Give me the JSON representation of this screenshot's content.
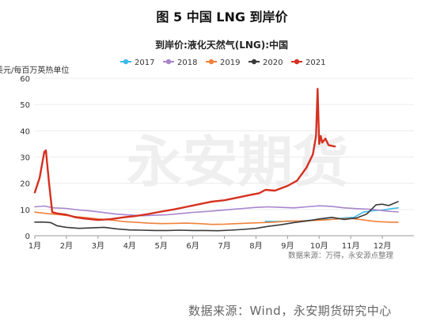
{
  "figure": {
    "title": "图 5 中国 LNG 到岸价",
    "source": "数据来源：Wind，永安期货研究中心"
  },
  "chart_data": {
    "type": "line",
    "title": "到岸价:液化天然气(LNG):中国",
    "ylabel": "美元/每百万英热单位",
    "note": "数据来源：万得，永安源点整理",
    "watermark": "永安期货",
    "xlim": [
      0,
      12
    ],
    "ylim": [
      0,
      60
    ],
    "yticks": [
      0,
      10,
      20,
      30,
      40,
      50,
      60
    ],
    "xticks": [
      {
        "x": 0,
        "label": "1月"
      },
      {
        "x": 1,
        "label": "2月"
      },
      {
        "x": 2,
        "label": "3月"
      },
      {
        "x": 3,
        "label": "4月"
      },
      {
        "x": 4,
        "label": "5月"
      },
      {
        "x": 5,
        "label": "6月"
      },
      {
        "x": 6,
        "label": "7月"
      },
      {
        "x": 7,
        "label": "8月"
      },
      {
        "x": 8,
        "label": "9月"
      },
      {
        "x": 9,
        "label": "10月"
      },
      {
        "x": 10,
        "label": "11月"
      },
      {
        "x": 11,
        "label": "12月"
      }
    ],
    "legend_position": "top",
    "series": [
      {
        "name": "2017",
        "color": "#3bb9e8",
        "x": [
          7.3,
          7.6,
          8.0,
          8.3,
          8.6,
          8.9,
          9.2,
          9.5,
          9.8,
          10.1,
          10.4,
          10.7,
          11.0,
          11.3,
          11.5
        ],
        "y": [
          5.5,
          5.4,
          5.5,
          5.6,
          5.8,
          6.0,
          6.2,
          6.3,
          6.8,
          7.0,
          9.0,
          9.5,
          9.8,
          10.3,
          10.6
        ]
      },
      {
        "name": "2018",
        "color": "#a785cc",
        "x": [
          0,
          0.3,
          0.6,
          1.0,
          1.4,
          1.8,
          2.2,
          2.6,
          3.0,
          3.4,
          3.8,
          4.2,
          4.6,
          5.0,
          5.4,
          5.8,
          6.2,
          6.6,
          7.0,
          7.4,
          7.8,
          8.2,
          8.6,
          9.0,
          9.4,
          9.8,
          10.2,
          10.6,
          11.0,
          11.3,
          11.5
        ],
        "y": [
          11.0,
          11.3,
          10.6,
          10.4,
          9.8,
          9.4,
          8.8,
          8.2,
          7.9,
          7.6,
          7.8,
          8.0,
          8.4,
          8.9,
          9.2,
          9.6,
          10.0,
          10.4,
          10.8,
          11.0,
          10.8,
          10.6,
          11.0,
          11.4,
          11.2,
          10.6,
          10.3,
          10.1,
          9.6,
          9.2,
          9.1
        ]
      },
      {
        "name": "2019",
        "color": "#f0813a",
        "x": [
          0,
          0.4,
          0.8,
          1.2,
          1.6,
          2.0,
          2.4,
          2.8,
          3.2,
          3.6,
          4.0,
          4.4,
          4.8,
          5.2,
          5.6,
          6.0,
          6.4,
          6.8,
          7.2,
          7.6,
          8.0,
          8.4,
          8.8,
          9.2,
          9.6,
          10.0,
          10.4,
          10.8,
          11.2,
          11.5
        ],
        "y": [
          9.0,
          8.4,
          8.0,
          7.4,
          6.9,
          6.4,
          6.0,
          5.4,
          5.1,
          4.8,
          4.6,
          4.7,
          4.8,
          4.6,
          4.3,
          4.4,
          4.6,
          4.8,
          5.0,
          5.2,
          5.6,
          5.6,
          5.8,
          6.0,
          6.4,
          6.6,
          6.0,
          5.4,
          5.2,
          5.1
        ]
      },
      {
        "name": "2020",
        "color": "#3a3a3a",
        "x": [
          0,
          0.3,
          0.5,
          0.7,
          1.0,
          1.4,
          1.8,
          2.2,
          2.6,
          3.0,
          3.4,
          3.8,
          4.2,
          4.6,
          5.0,
          5.4,
          5.8,
          6.2,
          6.6,
          7.0,
          7.4,
          7.8,
          8.2,
          8.6,
          9.0,
          9.4,
          9.8,
          10.2,
          10.5,
          10.8,
          11.0,
          11.2,
          11.5
        ],
        "y": [
          5.2,
          5.2,
          5.0,
          3.8,
          3.2,
          2.8,
          3.0,
          3.2,
          2.6,
          2.2,
          2.1,
          2.0,
          2.0,
          2.1,
          2.0,
          2.0,
          1.9,
          2.1,
          2.4,
          2.8,
          3.6,
          4.2,
          5.0,
          5.6,
          6.4,
          7.0,
          6.2,
          6.8,
          8.2,
          11.8,
          12.0,
          11.5,
          13.0
        ]
      },
      {
        "name": "2021",
        "color": "#d53020",
        "x": [
          0,
          0.15,
          0.3,
          0.35,
          0.45,
          0.55,
          0.7,
          1.0,
          1.3,
          1.6,
          2.0,
          2.4,
          2.8,
          3.2,
          3.6,
          4.0,
          4.4,
          4.8,
          5.2,
          5.6,
          6.0,
          6.4,
          6.8,
          7.1,
          7.3,
          7.6,
          8.0,
          8.3,
          8.6,
          8.8,
          8.9,
          8.95,
          9.0,
          9.05,
          9.1,
          9.2,
          9.3,
          9.5
        ],
        "y": [
          16.5,
          22.0,
          32.0,
          32.5,
          20.0,
          9.0,
          8.5,
          8.0,
          7.0,
          6.5,
          6.0,
          6.3,
          7.0,
          7.5,
          8.3,
          9.2,
          10.0,
          11.0,
          12.0,
          13.0,
          13.5,
          14.5,
          15.5,
          16.2,
          17.5,
          17.2,
          19.0,
          21.0,
          26.0,
          31.0,
          38.0,
          56.0,
          35.0,
          38.0,
          35.5,
          37.0,
          34.5,
          34.0
        ]
      }
    ]
  }
}
